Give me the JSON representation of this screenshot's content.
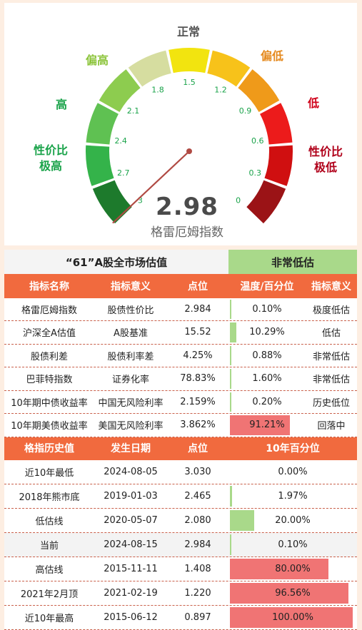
{
  "gauge": {
    "value": "2.98",
    "name": "格雷厄姆指数",
    "ticks": [
      "3",
      "2.7",
      "2.4",
      "2.1",
      "1.8",
      "1.5",
      "1.2",
      "0.9",
      "0.6",
      "0.3",
      "0"
    ],
    "zone_labels": [
      {
        "text": "性价比\n极高",
        "color": "#1aa34a"
      },
      {
        "text": "高",
        "color": "#1aa34a"
      },
      {
        "text": "偏高",
        "color": "#8cc43b"
      },
      {
        "text": "正常",
        "color": "#555555"
      },
      {
        "text": "偏低",
        "color": "#e58a1f"
      },
      {
        "text": "低",
        "color": "#d0021b"
      },
      {
        "text": "性价比\n极低",
        "color": "#b0001a"
      }
    ],
    "segment_colors": [
      "#1d7a2c",
      "#34b34a",
      "#5fc152",
      "#8dcc4f",
      "#d6dda0",
      "#f2e40f",
      "#f7c21a",
      "#ef9a1a",
      "#ec1b1b",
      "#d00f10",
      "#9b1316"
    ]
  },
  "chart_data": {
    "type": "gauge",
    "value": 2.98,
    "scale_min": 0,
    "scale_max": 3,
    "reversed": true,
    "ticks": [
      3,
      2.7,
      2.4,
      2.1,
      1.8,
      1.5,
      1.2,
      0.9,
      0.6,
      0.3,
      0
    ]
  },
  "title_row": {
    "main": "“61”A股全市场估值",
    "status": "非常低估"
  },
  "table1": {
    "headers": [
      "指标名称",
      "指标意义",
      "点位",
      "温度/百分位",
      "指标意义"
    ],
    "rows": [
      {
        "name": "格雷厄姆指数",
        "meaning": "股债性价比",
        "value": "2.984",
        "pct_text": "0.10%",
        "pct": 0.1,
        "status": "极度低估"
      },
      {
        "name": "沪深全A估值",
        "meaning": "A股基准",
        "value": "15.52",
        "pct_text": "10.29%",
        "pct": 10.29,
        "status": "低估"
      },
      {
        "name": "股债利差",
        "meaning": "股债利率差",
        "value": "4.25%",
        "pct_text": "0.88%",
        "pct": 0.88,
        "status": "非常低估"
      },
      {
        "name": "巴菲特指数",
        "meaning": "证券化率",
        "value": "78.83%",
        "pct_text": "1.60%",
        "pct": 1.6,
        "status": "非常低估"
      },
      {
        "name": "10年期中债收益率",
        "meaning": "中国无风险利率",
        "value": "2.159%",
        "pct_text": "0.20%",
        "pct": 0.2,
        "status": "历史低位"
      },
      {
        "name": "10年期美债收益率",
        "meaning": "美国无风险利率",
        "value": "3.862%",
        "pct_text": "91.21%",
        "pct": 91.21,
        "status": "回落中"
      }
    ]
  },
  "table2": {
    "headers": [
      "格指历史值",
      "发生日期",
      "点位",
      "10年百分位"
    ],
    "rows": [
      {
        "name": "近10年最低",
        "date": "2024-08-05",
        "value": "3.030",
        "pct_text": "0.00%",
        "pct": 0.0
      },
      {
        "name": "2018年熊市底",
        "date": "2019-01-03",
        "value": "2.465",
        "pct_text": "1.97%",
        "pct": 1.97
      },
      {
        "name": "低估线",
        "date": "2020-05-07",
        "value": "2.080",
        "pct_text": "20.00%",
        "pct": 20.0
      },
      {
        "name": "当前",
        "date": "2024-08-15",
        "value": "2.984",
        "pct_text": "0.10%",
        "pct": 0.1
      },
      {
        "name": "高估线",
        "date": "2015-11-11",
        "value": "1.408",
        "pct_text": "80.00%",
        "pct": 80.0
      },
      {
        "name": "2021年2月顶",
        "date": "2021-02-19",
        "value": "1.220",
        "pct_text": "96.56%",
        "pct": 96.56
      },
      {
        "name": "近10年最高",
        "date": "2015-06-12",
        "value": "0.897",
        "pct_text": "100.00%",
        "pct": 100.0
      }
    ]
  },
  "colors": {
    "header_bg": "#f16a3e",
    "bar_low": "#a9d98a",
    "bar_high": "#f07474",
    "needle": "#b04a43"
  }
}
